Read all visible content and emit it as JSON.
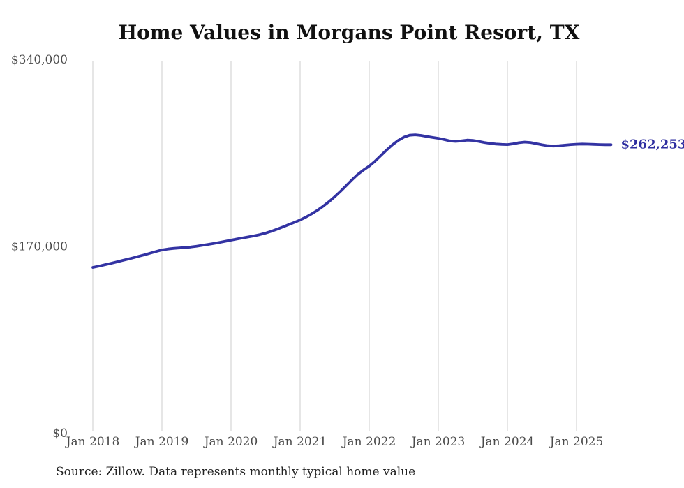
{
  "title": "Home Values in Morgans Point Resort, TX",
  "source_note": "Source: Zillow. Data represents monthly typical home value",
  "end_label": "$262,253",
  "colors": {
    "line": "#3333A3",
    "end_label": "#2D2DA0",
    "gridline": "#CCCCCC",
    "title": "#111111",
    "axis_text": "#4A4A4A",
    "source_text": "#222222",
    "background": "#FFFFFF"
  },
  "chart_data": {
    "type": "line",
    "title": "Home Values in Morgans Point Resort, TX",
    "xlabel": "",
    "ylabel": "",
    "x_start_month": "2018-01",
    "x_frequency": "monthly",
    "x_tick_labels": [
      "Jan 2018",
      "Jan 2019",
      "Jan 2020",
      "Jan 2021",
      "Jan 2022",
      "Jan 2023",
      "Jan 2024",
      "Jan 2025"
    ],
    "y_ticks": [
      0,
      170000,
      340000
    ],
    "y_tick_labels": [
      "$0",
      "$170,000",
      "$340,000"
    ],
    "ylim": [
      0,
      340000
    ],
    "grid": "vertical-only",
    "legend": "none",
    "series": [
      {
        "name": "Typical home value",
        "values": [
          150600,
          151700,
          152900,
          154100,
          155400,
          156700,
          158000,
          159300,
          160700,
          162100,
          163600,
          165100,
          166500,
          167300,
          167900,
          168300,
          168700,
          169200,
          169900,
          170700,
          171500,
          172400,
          173400,
          174400,
          175400,
          176400,
          177400,
          178300,
          179300,
          180400,
          181800,
          183500,
          185400,
          187400,
          189500,
          191600,
          193800,
          196400,
          199300,
          202600,
          206300,
          210400,
          214900,
          219800,
          225000,
          230300,
          235200,
          239300,
          242800,
          247300,
          252300,
          257400,
          262100,
          266100,
          269100,
          270900,
          271300,
          270700,
          269800,
          268900,
          268100,
          267000,
          265800,
          265300,
          265800,
          266500,
          266200,
          265300,
          264300,
          263500,
          262900,
          262600,
          262400,
          263100,
          264100,
          264700,
          264300,
          263300,
          262200,
          261400,
          261100,
          261400,
          261900,
          262400,
          262700,
          262900,
          262800,
          262600,
          262400,
          262300,
          262253
        ]
      }
    ],
    "end_annotation": {
      "text": "$262,253",
      "value": 262253
    }
  }
}
